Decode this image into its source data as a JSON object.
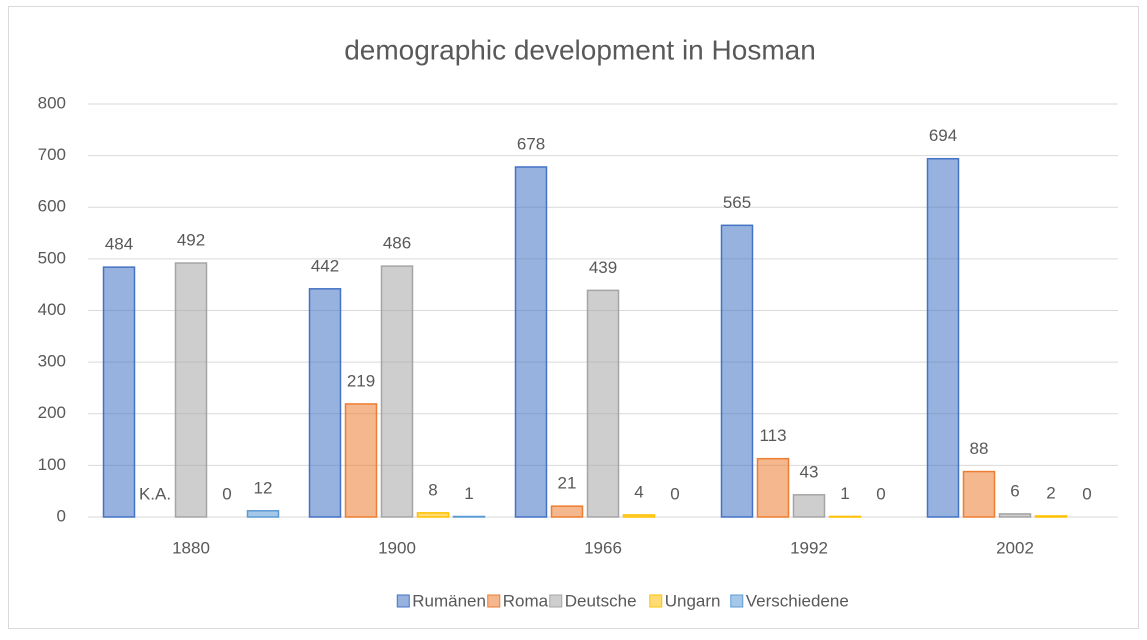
{
  "chart_data": {
    "type": "bar",
    "title": "demographic development in Hosman",
    "categories": [
      "1880",
      "1900",
      "1966",
      "1992",
      "2002"
    ],
    "series": [
      {
        "name": "Rumänen",
        "color": "#4472c4",
        "values": [
          484,
          442,
          678,
          565,
          694
        ]
      },
      {
        "name": "Roma",
        "color": "#ed7d31",
        "values": [
          null,
          219,
          21,
          113,
          88
        ],
        "value_labels": [
          "K.A.",
          "219",
          "21",
          "113",
          "88"
        ]
      },
      {
        "name": "Deutsche",
        "color": "#a5a5a5",
        "values": [
          492,
          486,
          439,
          43,
          6
        ]
      },
      {
        "name": "Ungarn",
        "color": "#ffc000",
        "values": [
          0,
          8,
          4,
          1,
          2
        ]
      },
      {
        "name": "Verschiedene",
        "color": "#5b9bd5",
        "values": [
          12,
          1,
          0,
          0,
          0
        ]
      }
    ],
    "ylim": [
      0,
      800
    ],
    "yticks": [
      0,
      100,
      200,
      300,
      400,
      500,
      600,
      700,
      800
    ],
    "grid": true,
    "legend": "bottom"
  }
}
